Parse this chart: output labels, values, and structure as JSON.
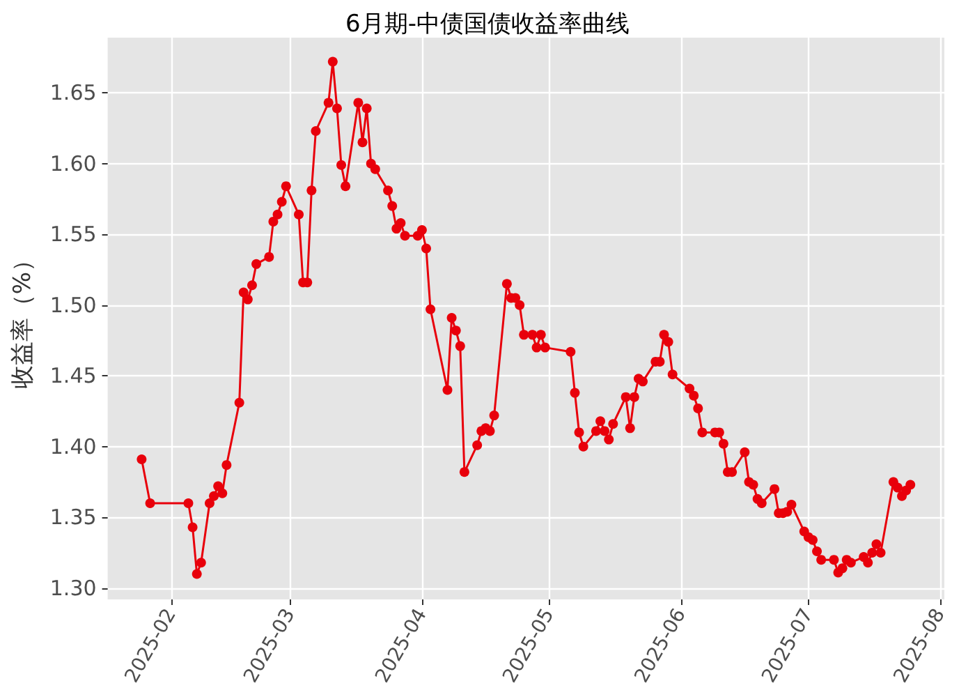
{
  "chart_data": {
    "type": "line",
    "title": "6月期-中债国债收益率曲线",
    "ylabel": "收益率（%）",
    "x": [
      "2025-01-25",
      "2025-01-27",
      "2025-02-05",
      "2025-02-06",
      "2025-02-07",
      "2025-02-08",
      "2025-02-10",
      "2025-02-11",
      "2025-02-12",
      "2025-02-13",
      "2025-02-14",
      "2025-02-17",
      "2025-02-18",
      "2025-02-19",
      "2025-02-20",
      "2025-02-21",
      "2025-02-24",
      "2025-02-25",
      "2025-02-26",
      "2025-02-27",
      "2025-02-28",
      "2025-03-03",
      "2025-03-04",
      "2025-03-05",
      "2025-03-06",
      "2025-03-07",
      "2025-03-10",
      "2025-03-11",
      "2025-03-12",
      "2025-03-13",
      "2025-03-14",
      "2025-03-17",
      "2025-03-18",
      "2025-03-19",
      "2025-03-20",
      "2025-03-21",
      "2025-03-24",
      "2025-03-25",
      "2025-03-26",
      "2025-03-27",
      "2025-03-28",
      "2025-03-31",
      "2025-04-01",
      "2025-04-02",
      "2025-04-03",
      "2025-04-07",
      "2025-04-08",
      "2025-04-09",
      "2025-04-10",
      "2025-04-11",
      "2025-04-14",
      "2025-04-15",
      "2025-04-16",
      "2025-04-17",
      "2025-04-18",
      "2025-04-21",
      "2025-04-22",
      "2025-04-23",
      "2025-04-24",
      "2025-04-25",
      "2025-04-27",
      "2025-04-28",
      "2025-04-29",
      "2025-04-30",
      "2025-05-06",
      "2025-05-07",
      "2025-05-08",
      "2025-05-09",
      "2025-05-12",
      "2025-05-13",
      "2025-05-14",
      "2025-05-15",
      "2025-05-16",
      "2025-05-19",
      "2025-05-20",
      "2025-05-21",
      "2025-05-22",
      "2025-05-23",
      "2025-05-26",
      "2025-05-27",
      "2025-05-28",
      "2025-05-29",
      "2025-05-30",
      "2025-06-03",
      "2025-06-04",
      "2025-06-05",
      "2025-06-06",
      "2025-06-09",
      "2025-06-10",
      "2025-06-11",
      "2025-06-12",
      "2025-06-13",
      "2025-06-16",
      "2025-06-17",
      "2025-06-18",
      "2025-06-19",
      "2025-06-20",
      "2025-06-23",
      "2025-06-24",
      "2025-06-25",
      "2025-06-26",
      "2025-06-27",
      "2025-06-30",
      "2025-07-01",
      "2025-07-02",
      "2025-07-03",
      "2025-07-04",
      "2025-07-07",
      "2025-07-08",
      "2025-07-09",
      "2025-07-10",
      "2025-07-11",
      "2025-07-14",
      "2025-07-15",
      "2025-07-16",
      "2025-07-17",
      "2025-07-18",
      "2025-07-21",
      "2025-07-22",
      "2025-07-23",
      "2025-07-24",
      "2025-07-25"
    ],
    "series": [
      {
        "color": "#e8000b",
        "values": [
          1.391,
          1.36,
          1.36,
          1.343,
          1.31,
          1.318,
          1.36,
          1.365,
          1.372,
          1.367,
          1.387,
          1.431,
          1.509,
          1.504,
          1.514,
          1.529,
          1.534,
          1.559,
          1.564,
          1.573,
          1.584,
          1.564,
          1.516,
          1.516,
          1.581,
          1.623,
          1.643,
          1.672,
          1.639,
          1.599,
          1.584,
          1.643,
          1.615,
          1.639,
          1.6,
          1.596,
          1.581,
          1.57,
          1.554,
          1.558,
          1.549,
          1.549,
          1.553,
          1.54,
          1.497,
          1.44,
          1.491,
          1.482,
          1.471,
          1.382,
          1.401,
          1.411,
          1.413,
          1.411,
          1.422,
          1.515,
          1.505,
          1.505,
          1.5,
          1.479,
          1.479,
          1.47,
          1.479,
          1.47,
          1.467,
          1.438,
          1.41,
          1.4,
          1.411,
          1.418,
          1.411,
          1.405,
          1.416,
          1.435,
          1.413,
          1.435,
          1.448,
          1.446,
          1.46,
          1.46,
          1.479,
          1.474,
          1.451,
          1.441,
          1.436,
          1.427,
          1.41,
          1.41,
          1.41,
          1.402,
          1.382,
          1.382,
          1.396,
          1.375,
          1.373,
          1.363,
          1.36,
          1.37,
          1.353,
          1.353,
          1.354,
          1.359,
          1.34,
          1.336,
          1.334,
          1.326,
          1.32,
          1.32,
          1.311,
          1.314,
          1.32,
          1.318,
          1.322,
          1.318,
          1.325,
          1.331,
          1.325,
          1.375,
          1.371,
          1.365,
          1.369,
          1.373
        ]
      }
    ],
    "xlim": [
      "2025-01-17",
      "2025-08-02"
    ],
    "xticks": [
      "2025-02",
      "2025-03",
      "2025-04",
      "2025-05",
      "2025-06",
      "2025-07",
      "2025-08"
    ],
    "ylim": [
      1.292,
      1.689
    ],
    "yticks": [
      {
        "value": 1.3,
        "label": "1.30"
      },
      {
        "value": 1.35,
        "label": "1.35"
      },
      {
        "value": 1.4,
        "label": "1.40"
      },
      {
        "value": 1.45,
        "label": "1.45"
      },
      {
        "value": 1.5,
        "label": "1.50"
      },
      {
        "value": 1.55,
        "label": "1.55"
      },
      {
        "value": 1.6,
        "label": "1.60"
      },
      {
        "value": 1.65,
        "label": "1.65"
      }
    ],
    "grid": true,
    "marker": "circle",
    "line_style": "solid"
  }
}
